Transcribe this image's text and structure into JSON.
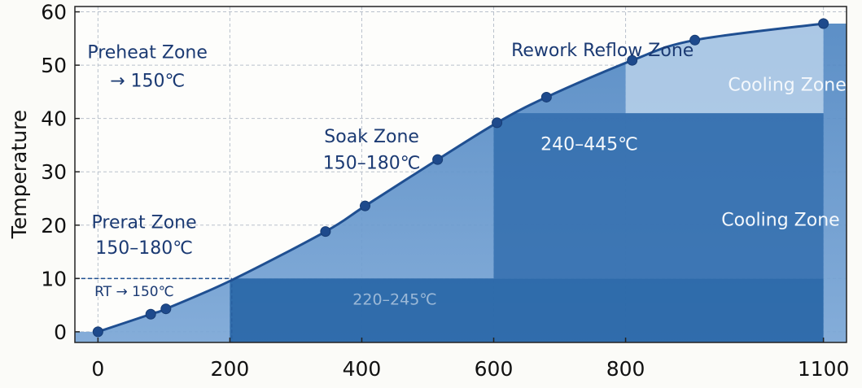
{
  "chart_data": {
    "type": "area",
    "title": "",
    "xlabel": "",
    "ylabel": "Temperature",
    "xlim": [
      -35,
      1135
    ],
    "ylim": [
      -2,
      61
    ],
    "x_ticks": [
      0,
      200,
      400,
      600,
      800,
      1100
    ],
    "x_tick_labels": [
      "0",
      "200",
      "400",
      "600",
      "800",
      "1100"
    ],
    "y_ticks": [
      0,
      10,
      20,
      30,
      40,
      50,
      60
    ],
    "grid": true,
    "series": [
      {
        "x": [
          0,
          80,
          103,
          203,
          345,
          405,
          515,
          605,
          680,
          810,
          905,
          1100
        ],
        "y": [
          0,
          3.3,
          4.3,
          9.7,
          18.8,
          23.6,
          32.3,
          39.2,
          44,
          50.9,
          54.7,
          57.8
        ],
        "color": "#1f4f91"
      }
    ],
    "markers": {
      "x": [
        0,
        80,
        103,
        345,
        405,
        515,
        605,
        680,
        810,
        905,
        1100
      ],
      "y": [
        0,
        3.3,
        4.3,
        18.8,
        23.6,
        32.3,
        39.2,
        44,
        50.9,
        54.7,
        57.8
      ]
    },
    "bands": [
      {
        "x": [
          200,
          1100
        ],
        "y": [
          -2,
          10
        ],
        "color": "#1c5da0"
      },
      {
        "x": [
          600,
          1100
        ],
        "y": [
          10,
          41
        ],
        "color": "#2e6aab"
      },
      {
        "x": [
          800,
          1100
        ],
        "y": [
          41,
          61
        ],
        "color": "#b9d1ea"
      }
    ],
    "reference_lines": [
      {
        "x": [
          -35,
          203
        ],
        "y": 10
      }
    ],
    "annotations": [
      {
        "id": "preheat1",
        "lines": [
          "Preheat Zone",
          "→ 150℃"
        ],
        "x": [
          75,
          75
        ],
        "y": [
          51.3,
          46
        ],
        "style": "dark"
      },
      {
        "id": "rework",
        "lines": [
          "Rework Reflow Zone"
        ],
        "x": [
          765
        ],
        "y": [
          51.7
        ],
        "style": "dark"
      },
      {
        "id": "soak",
        "lines": [
          "Soak Zone",
          "150–180℃"
        ],
        "x": [
          415,
          415
        ],
        "y": [
          35.5,
          30.6
        ],
        "style": "dark"
      },
      {
        "id": "cooling1",
        "lines": [
          "Cooling Zone"
        ],
        "x": [
          1045
        ],
        "y": [
          45.2
        ],
        "style": "light"
      },
      {
        "id": "range1",
        "lines": [
          "240–445℃"
        ],
        "x": [
          745
        ],
        "y": [
          34.1
        ],
        "style": "light"
      },
      {
        "id": "preheat2",
        "lines": [
          "Prerat Zone",
          "150–180℃"
        ],
        "x": [
          70,
          70
        ],
        "y": [
          19.4,
          14.6
        ],
        "style": "dark"
      },
      {
        "id": "cooling2",
        "lines": [
          "Cooling Zone"
        ],
        "x": [
          1035
        ],
        "y": [
          19.9
        ],
        "style": "light"
      },
      {
        "id": "rt",
        "lines": [
          "RT → 150℃"
        ],
        "x": [
          55
        ],
        "y": [
          6.7
        ],
        "style": "dark"
      },
      {
        "id": "range2",
        "lines": [
          "220–245℃"
        ],
        "x": [
          450
        ],
        "y": [
          5.1
        ],
        "style": "faint"
      }
    ]
  }
}
